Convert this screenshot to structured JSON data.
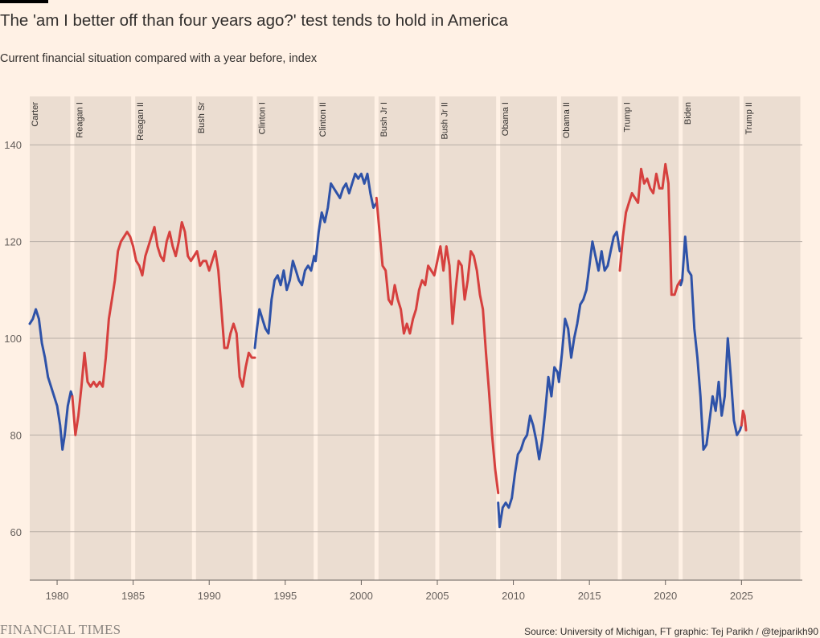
{
  "header": {
    "title": "The 'am I better off than four years ago?' test tends to hold in America",
    "subtitle": "Current financial situation compared with a year before, index"
  },
  "footer": {
    "brand": "FINANCIAL TIMES",
    "source": "Source: University of Michigan, FT graphic: Tej Parikh / @tejparikh90"
  },
  "colors": {
    "background": "#fff1e5",
    "band": "#ebddd1",
    "grid": "#b8aea6",
    "democrat": "#2e52a8",
    "republican": "#d6403e"
  },
  "chart_data": {
    "type": "line",
    "title": "The 'am I better off than four years ago?' test tends to hold in America",
    "subtitle": "Current financial situation compared with a year before, index",
    "xlim": [
      1978.2,
      2029.0
    ],
    "ylim": [
      50,
      150
    ],
    "x_ticks": [
      1980,
      1985,
      1990,
      1995,
      2000,
      2005,
      2010,
      2015,
      2020,
      2025
    ],
    "y_ticks": [
      60,
      80,
      100,
      120,
      140
    ],
    "grid": true,
    "legend": "none",
    "eras": [
      {
        "label": "Carter",
        "start": 1978.2,
        "end": 1981.0,
        "party": "D"
      },
      {
        "label": "Reagan I",
        "start": 1981.0,
        "end": 1985.0,
        "party": "R"
      },
      {
        "label": "Reagan II",
        "start": 1985.0,
        "end": 1989.0,
        "party": "R"
      },
      {
        "label": "Bush Sr",
        "start": 1989.0,
        "end": 1993.0,
        "party": "R"
      },
      {
        "label": "Clinton I",
        "start": 1993.0,
        "end": 1997.0,
        "party": "D"
      },
      {
        "label": "Clinton II",
        "start": 1997.0,
        "end": 2001.0,
        "party": "D"
      },
      {
        "label": "Bush Jr I",
        "start": 2001.0,
        "end": 2005.0,
        "party": "R"
      },
      {
        "label": "Bush Jr II",
        "start": 2005.0,
        "end": 2009.0,
        "party": "R"
      },
      {
        "label": "Obama I",
        "start": 2009.0,
        "end": 2013.0,
        "party": "D"
      },
      {
        "label": "Obama II",
        "start": 2013.0,
        "end": 2017.0,
        "party": "D"
      },
      {
        "label": "Trump I",
        "start": 2017.0,
        "end": 2021.0,
        "party": "R"
      },
      {
        "label": "Biden",
        "start": 2021.0,
        "end": 2025.0,
        "party": "D"
      },
      {
        "label": "Trump II",
        "start": 2025.0,
        "end": 2029.0,
        "party": "R"
      }
    ],
    "series": [
      {
        "party": "D",
        "era": "Carter",
        "points": [
          [
            1978.2,
            103
          ],
          [
            1978.4,
            104
          ],
          [
            1978.6,
            106
          ],
          [
            1978.8,
            104
          ],
          [
            1979.0,
            99
          ],
          [
            1979.2,
            96
          ],
          [
            1979.4,
            92
          ],
          [
            1979.6,
            90
          ],
          [
            1979.8,
            88
          ],
          [
            1980.0,
            86
          ],
          [
            1980.2,
            82
          ],
          [
            1980.35,
            77
          ],
          [
            1980.5,
            80
          ],
          [
            1980.7,
            86
          ],
          [
            1980.9,
            89
          ],
          [
            1981.0,
            88
          ]
        ]
      },
      {
        "party": "R",
        "era": "Reagan I",
        "points": [
          [
            1981.0,
            88
          ],
          [
            1981.2,
            80
          ],
          [
            1981.4,
            84
          ],
          [
            1981.6,
            90
          ],
          [
            1981.8,
            97
          ],
          [
            1982.0,
            91
          ],
          [
            1982.2,
            90
          ],
          [
            1982.4,
            91
          ],
          [
            1982.6,
            90
          ],
          [
            1982.8,
            91
          ],
          [
            1983.0,
            90
          ],
          [
            1983.2,
            96
          ],
          [
            1983.4,
            104
          ],
          [
            1983.6,
            108
          ],
          [
            1983.8,
            112
          ],
          [
            1984.0,
            118
          ],
          [
            1984.2,
            120
          ],
          [
            1984.4,
            121
          ],
          [
            1984.6,
            122
          ],
          [
            1984.8,
            121
          ],
          [
            1985.0,
            119
          ]
        ]
      },
      {
        "party": "R",
        "era": "Reagan II",
        "points": [
          [
            1985.0,
            119
          ],
          [
            1985.2,
            116
          ],
          [
            1985.4,
            115
          ],
          [
            1985.6,
            113
          ],
          [
            1985.8,
            117
          ],
          [
            1986.0,
            119
          ],
          [
            1986.2,
            121
          ],
          [
            1986.4,
            123
          ],
          [
            1986.6,
            119
          ],
          [
            1986.8,
            117
          ],
          [
            1987.0,
            116
          ],
          [
            1987.2,
            120
          ],
          [
            1987.4,
            122
          ],
          [
            1987.6,
            119
          ],
          [
            1987.8,
            117
          ],
          [
            1988.0,
            120
          ],
          [
            1988.2,
            124
          ],
          [
            1988.4,
            122
          ],
          [
            1988.6,
            117
          ],
          [
            1988.8,
            116
          ],
          [
            1989.0,
            117
          ]
        ]
      },
      {
        "party": "R",
        "era": "Bush Sr",
        "points": [
          [
            1989.0,
            117
          ],
          [
            1989.2,
            118
          ],
          [
            1989.4,
            115
          ],
          [
            1989.6,
            116
          ],
          [
            1989.8,
            116
          ],
          [
            1990.0,
            114
          ],
          [
            1990.2,
            116
          ],
          [
            1990.4,
            118
          ],
          [
            1990.6,
            114
          ],
          [
            1990.8,
            106
          ],
          [
            1991.0,
            98
          ],
          [
            1991.2,
            98
          ],
          [
            1991.4,
            101
          ],
          [
            1991.6,
            103
          ],
          [
            1991.8,
            101
          ],
          [
            1992.0,
            92
          ],
          [
            1992.2,
            90
          ],
          [
            1992.4,
            94
          ],
          [
            1992.6,
            97
          ],
          [
            1992.8,
            96
          ],
          [
            1993.0,
            96
          ]
        ]
      },
      {
        "party": "D",
        "era": "Clinton I",
        "points": [
          [
            1993.0,
            98
          ],
          [
            1993.1,
            101
          ],
          [
            1993.3,
            106
          ],
          [
            1993.5,
            104
          ],
          [
            1993.7,
            102
          ],
          [
            1993.9,
            101
          ],
          [
            1994.1,
            108
          ],
          [
            1994.3,
            112
          ],
          [
            1994.5,
            113
          ],
          [
            1994.7,
            111
          ],
          [
            1994.9,
            114
          ],
          [
            1995.1,
            110
          ],
          [
            1995.3,
            112
          ],
          [
            1995.5,
            116
          ],
          [
            1995.7,
            114
          ],
          [
            1995.9,
            112
          ],
          [
            1996.1,
            111
          ],
          [
            1996.3,
            114
          ],
          [
            1996.5,
            115
          ],
          [
            1996.7,
            114
          ],
          [
            1996.9,
            117
          ],
          [
            1997.0,
            116
          ]
        ]
      },
      {
        "party": "D",
        "era": "Clinton II",
        "points": [
          [
            1997.0,
            116
          ],
          [
            1997.2,
            122
          ],
          [
            1997.4,
            126
          ],
          [
            1997.6,
            124
          ],
          [
            1997.8,
            127
          ],
          [
            1998.0,
            132
          ],
          [
            1998.2,
            131
          ],
          [
            1998.4,
            130
          ],
          [
            1998.6,
            129
          ],
          [
            1998.8,
            131
          ],
          [
            1999.0,
            132
          ],
          [
            1999.2,
            130
          ],
          [
            1999.4,
            132
          ],
          [
            1999.6,
            134
          ],
          [
            1999.8,
            133
          ],
          [
            2000.0,
            134
          ],
          [
            2000.2,
            132
          ],
          [
            2000.4,
            134
          ],
          [
            2000.6,
            130
          ],
          [
            2000.8,
            127
          ],
          [
            2001.0,
            128
          ]
        ]
      },
      {
        "party": "R",
        "era": "Bush Jr I",
        "points": [
          [
            2001.0,
            129
          ],
          [
            2001.2,
            122
          ],
          [
            2001.4,
            115
          ],
          [
            2001.6,
            114
          ],
          [
            2001.8,
            108
          ],
          [
            2002.0,
            107
          ],
          [
            2002.2,
            111
          ],
          [
            2002.4,
            108
          ],
          [
            2002.6,
            106
          ],
          [
            2002.8,
            101
          ],
          [
            2003.0,
            103
          ],
          [
            2003.2,
            101
          ],
          [
            2003.4,
            104
          ],
          [
            2003.6,
            106
          ],
          [
            2003.8,
            110
          ],
          [
            2004.0,
            112
          ],
          [
            2004.2,
            111
          ],
          [
            2004.4,
            115
          ],
          [
            2004.6,
            114
          ],
          [
            2004.8,
            113
          ],
          [
            2005.0,
            116
          ]
        ]
      },
      {
        "party": "R",
        "era": "Bush Jr II",
        "points": [
          [
            2005.0,
            116
          ],
          [
            2005.2,
            119
          ],
          [
            2005.4,
            114
          ],
          [
            2005.6,
            119
          ],
          [
            2005.8,
            115
          ],
          [
            2006.0,
            103
          ],
          [
            2006.2,
            110
          ],
          [
            2006.4,
            116
          ],
          [
            2006.6,
            115
          ],
          [
            2006.8,
            108
          ],
          [
            2007.0,
            112
          ],
          [
            2007.2,
            118
          ],
          [
            2007.4,
            117
          ],
          [
            2007.6,
            114
          ],
          [
            2007.8,
            109
          ],
          [
            2008.0,
            106
          ],
          [
            2008.2,
            97
          ],
          [
            2008.4,
            89
          ],
          [
            2008.6,
            80
          ],
          [
            2008.8,
            73
          ],
          [
            2009.0,
            68
          ]
        ]
      },
      {
        "party": "D",
        "era": "Obama I",
        "points": [
          [
            2009.0,
            66
          ],
          [
            2009.1,
            61
          ],
          [
            2009.3,
            65
          ],
          [
            2009.5,
            66
          ],
          [
            2009.7,
            65
          ],
          [
            2009.9,
            67
          ],
          [
            2010.1,
            72
          ],
          [
            2010.3,
            76
          ],
          [
            2010.5,
            77
          ],
          [
            2010.7,
            79
          ],
          [
            2010.9,
            80
          ],
          [
            2011.1,
            84
          ],
          [
            2011.3,
            82
          ],
          [
            2011.5,
            79
          ],
          [
            2011.7,
            75
          ],
          [
            2011.9,
            79
          ],
          [
            2012.1,
            85
          ],
          [
            2012.3,
            92
          ],
          [
            2012.5,
            88
          ],
          [
            2012.7,
            94
          ],
          [
            2012.9,
            93
          ],
          [
            2013.0,
            91
          ]
        ]
      },
      {
        "party": "D",
        "era": "Obama II",
        "points": [
          [
            2013.0,
            91
          ],
          [
            2013.2,
            97
          ],
          [
            2013.4,
            104
          ],
          [
            2013.6,
            102
          ],
          [
            2013.8,
            96
          ],
          [
            2014.0,
            100
          ],
          [
            2014.2,
            103
          ],
          [
            2014.4,
            107
          ],
          [
            2014.6,
            108
          ],
          [
            2014.8,
            110
          ],
          [
            2015.0,
            115
          ],
          [
            2015.2,
            120
          ],
          [
            2015.4,
            117
          ],
          [
            2015.6,
            114
          ],
          [
            2015.8,
            118
          ],
          [
            2016.0,
            114
          ],
          [
            2016.2,
            115
          ],
          [
            2016.4,
            118
          ],
          [
            2016.6,
            121
          ],
          [
            2016.8,
            122
          ],
          [
            2017.0,
            118
          ]
        ]
      },
      {
        "party": "R",
        "era": "Trump I",
        "points": [
          [
            2017.0,
            114
          ],
          [
            2017.2,
            121
          ],
          [
            2017.4,
            126
          ],
          [
            2017.6,
            128
          ],
          [
            2017.8,
            130
          ],
          [
            2018.0,
            129
          ],
          [
            2018.2,
            128
          ],
          [
            2018.4,
            135
          ],
          [
            2018.6,
            132
          ],
          [
            2018.8,
            133
          ],
          [
            2019.0,
            131
          ],
          [
            2019.2,
            130
          ],
          [
            2019.4,
            134
          ],
          [
            2019.6,
            131
          ],
          [
            2019.8,
            131
          ],
          [
            2020.0,
            136
          ],
          [
            2020.2,
            132
          ],
          [
            2020.4,
            109
          ],
          [
            2020.6,
            109
          ],
          [
            2020.8,
            111
          ],
          [
            2021.0,
            112
          ]
        ]
      },
      {
        "party": "D",
        "era": "Biden",
        "points": [
          [
            2021.0,
            111
          ],
          [
            2021.1,
            112
          ],
          [
            2021.3,
            121
          ],
          [
            2021.5,
            114
          ],
          [
            2021.7,
            113
          ],
          [
            2021.9,
            102
          ],
          [
            2022.1,
            96
          ],
          [
            2022.3,
            88
          ],
          [
            2022.5,
            77
          ],
          [
            2022.7,
            78
          ],
          [
            2022.9,
            83
          ],
          [
            2023.1,
            88
          ],
          [
            2023.3,
            85
          ],
          [
            2023.5,
            91
          ],
          [
            2023.7,
            84
          ],
          [
            2023.9,
            88
          ],
          [
            2024.1,
            100
          ],
          [
            2024.3,
            92
          ],
          [
            2024.5,
            83
          ],
          [
            2024.7,
            80
          ],
          [
            2024.9,
            81
          ],
          [
            2025.0,
            82
          ]
        ]
      },
      {
        "party": "R",
        "era": "Trump II",
        "points": [
          [
            2025.0,
            82
          ],
          [
            2025.1,
            85
          ],
          [
            2025.2,
            84
          ],
          [
            2025.3,
            81
          ]
        ]
      }
    ]
  }
}
